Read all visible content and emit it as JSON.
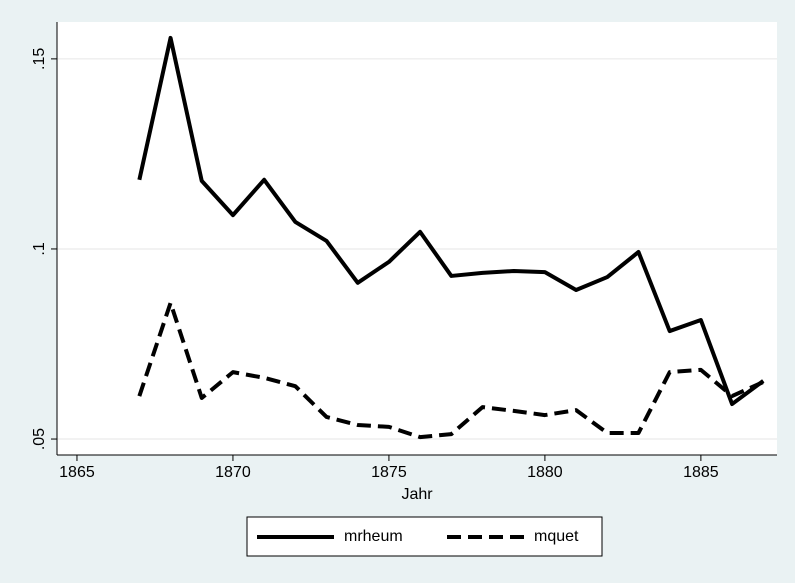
{
  "chart_data": {
    "type": "line",
    "x_label": "Jahr",
    "x": [
      1867,
      1868,
      1869,
      1870,
      1871,
      1872,
      1873,
      1874,
      1875,
      1876,
      1877,
      1878,
      1879,
      1880,
      1881,
      1882,
      1883,
      1884,
      1885,
      1886,
      1887
    ],
    "series": [
      {
        "name": "mrheum",
        "color": "#000000",
        "style": "solid",
        "values": [
          0.1182,
          0.1555,
          0.1179,
          0.1089,
          0.1182,
          0.1071,
          0.1021,
          0.0911,
          0.0966,
          0.1045,
          0.0929,
          0.0937,
          0.0942,
          0.0939,
          0.0892,
          0.0926,
          0.0992,
          0.0784,
          0.0813,
          0.0592,
          0.0653
        ]
      },
      {
        "name": "mquet",
        "color": "#000000",
        "style": "dashed",
        "values": [
          0.0613,
          0.0858,
          0.0608,
          0.0676,
          0.0661,
          0.0639,
          0.0558,
          0.0537,
          0.0532,
          0.0505,
          0.0513,
          0.0584,
          0.0574,
          0.0563,
          0.0576,
          0.0516,
          0.0516,
          0.0676,
          0.0682,
          0.0613,
          0.065
        ]
      }
    ],
    "xlim": [
      1864.36,
      1887.44
    ],
    "xticks": [
      1865,
      1870,
      1875,
      1880,
      1885
    ],
    "ylim": [
      0.0458,
      0.1597
    ],
    "yticks": [
      {
        "value": 0.05,
        "label": ".05"
      },
      {
        "value": 0.1,
        "label": ".1"
      },
      {
        "value": 0.15,
        "label": ".15"
      }
    ],
    "grid": true,
    "legend": "bottom"
  }
}
